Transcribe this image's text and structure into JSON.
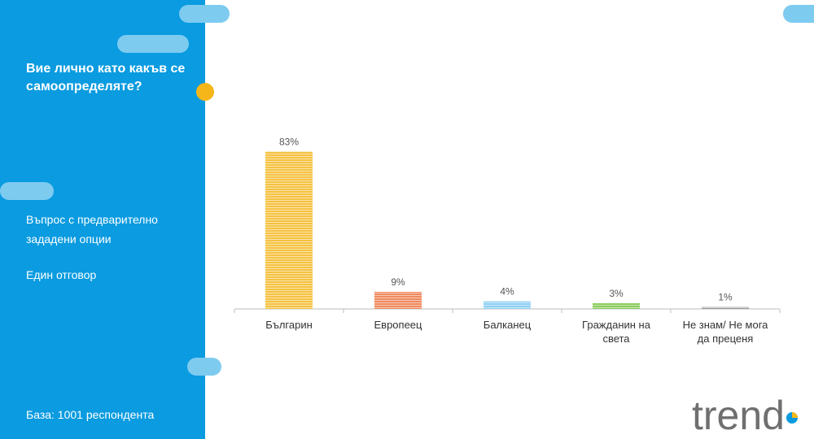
{
  "sidebar": {
    "question": "Вие лично като какъв се самоопределяте?",
    "question_type": "Въпрос с предварително зададени опции",
    "answer_mode": "Един отговор",
    "base": "База:  1001 респондента"
  },
  "brand": {
    "logo_text": "trend"
  },
  "colors": {
    "sidebar": "#0a9be0",
    "pill": "#7ecbf0",
    "accent_dot": "#f5b61a"
  },
  "chart_data": {
    "type": "bar",
    "categories": [
      "Българин",
      "Европеец",
      "Балканец",
      "Гражданин на света",
      "Не знам/ Не мога да преценя"
    ],
    "values": [
      83,
      9,
      4,
      3,
      1
    ],
    "value_suffix": "%",
    "colors": [
      "#f5c242",
      "#ef8a5e",
      "#8fd0f2",
      "#8ccc5e",
      "#9a9a9a"
    ],
    "ylim": [
      0,
      90
    ],
    "grid": false,
    "legend": "none"
  }
}
